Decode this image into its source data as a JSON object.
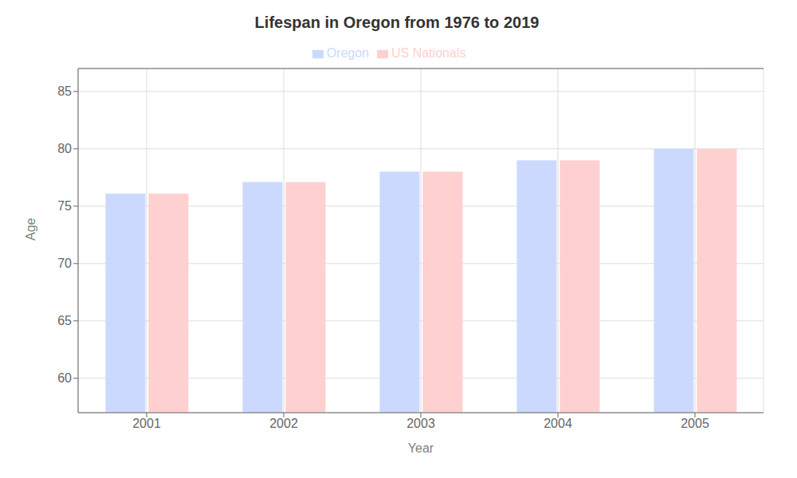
{
  "chart_data": {
    "type": "bar",
    "title": "Lifespan in Oregon from 1976 to 2019",
    "x_label": "Year",
    "y_label": "Age",
    "categories": [
      "2001",
      "2002",
      "2003",
      "2004",
      "2005"
    ],
    "series": [
      {
        "name": "Oregon",
        "color": "#ccd9ff",
        "values": [
          76.1,
          77.1,
          78.0,
          79.0,
          80.0
        ]
      },
      {
        "name": "US Nationals",
        "color": "#ffd0d0",
        "values": [
          76.1,
          77.1,
          78.0,
          79.0,
          80.0
        ]
      }
    ],
    "ylim": [
      57,
      87
    ],
    "yticks": [
      60,
      65,
      70,
      75,
      80,
      85
    ],
    "grid": true,
    "legend": "top"
  }
}
